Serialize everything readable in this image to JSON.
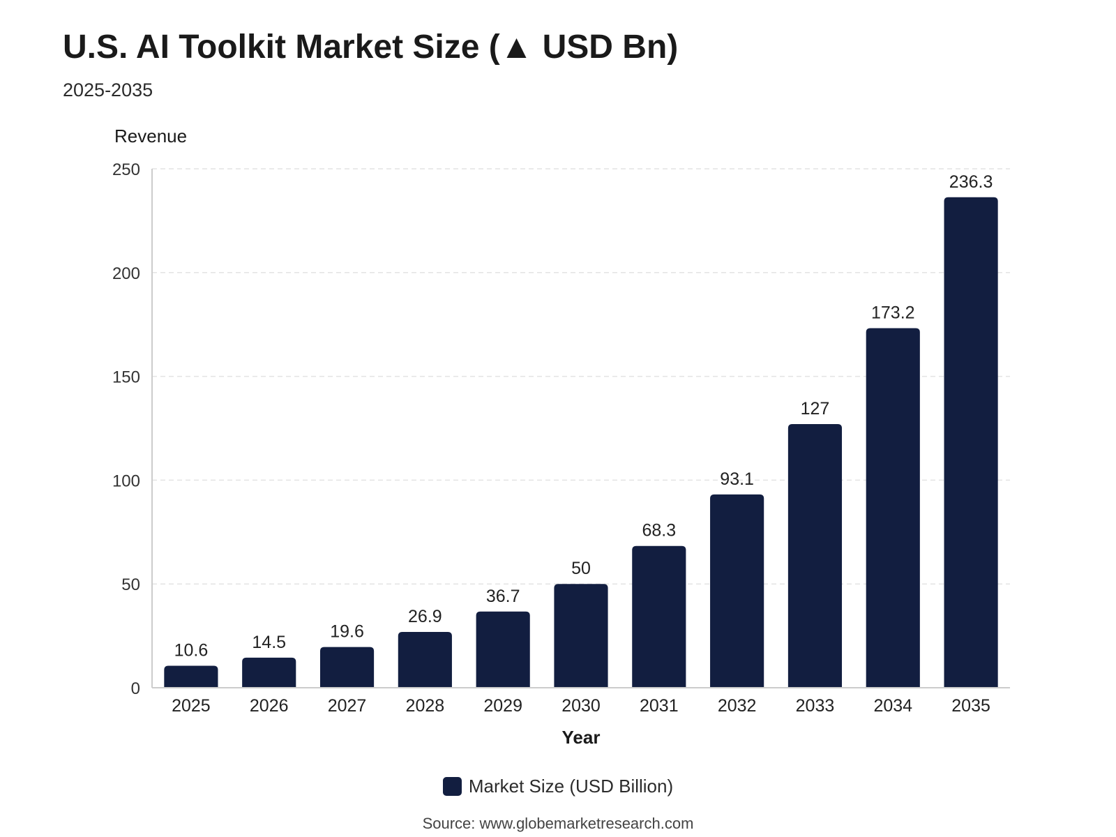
{
  "header": {
    "title": "U.S. AI Toolkit Market Size (▲ USD Bn)",
    "subtitle": "2025-2035"
  },
  "legend": {
    "label": "Market Size (USD Billion)"
  },
  "source": "Source: www.globemarketresearch.com",
  "colors": {
    "bar": "#121e40",
    "grid": "#e3e3e3",
    "axis": "#cccccc"
  },
  "chart_data": {
    "type": "bar",
    "categories": [
      "2025",
      "2026",
      "2027",
      "2028",
      "2029",
      "2030",
      "2031",
      "2032",
      "2033",
      "2034",
      "2035"
    ],
    "series": [
      {
        "name": "Market Size (USD Billion)",
        "values": [
          10.6,
          14.5,
          19.6,
          26.9,
          36.7,
          50,
          68.3,
          93.1,
          127,
          173.2,
          236.3
        ]
      }
    ],
    "data_labels": [
      "10.6",
      "14.5",
      "19.6",
      "26.9",
      "36.7",
      "50",
      "68.3",
      "93.1",
      "127",
      "173.2",
      "236.3"
    ],
    "title": "U.S. AI Toolkit Market Size (▲ USD Bn)",
    "subtitle": "2025-2035",
    "xlabel": "Year",
    "ylabel": "Revenue",
    "ylim": [
      0,
      250
    ],
    "yticks": [
      0,
      50,
      100,
      150,
      200,
      250
    ],
    "grid": true,
    "legend_position": "bottom"
  }
}
